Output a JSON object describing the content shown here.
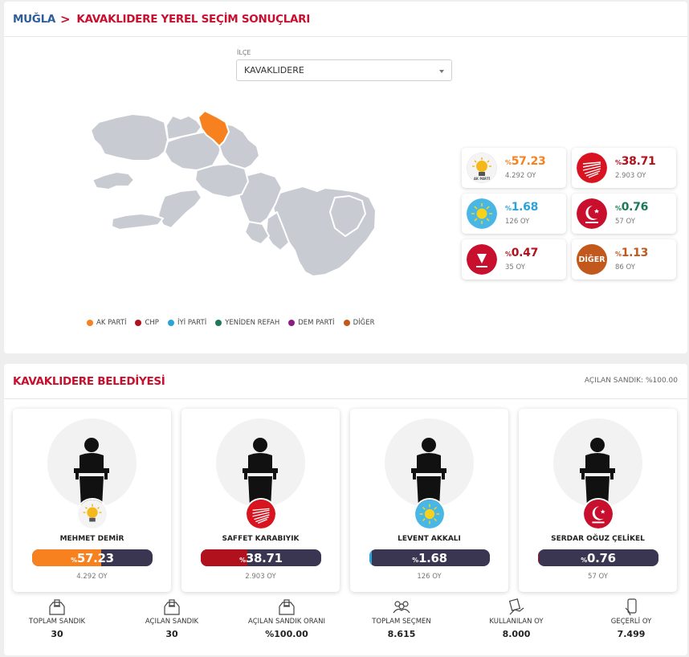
{
  "breadcrumb": {
    "city": "MUĞLA",
    "separator": ">",
    "title": "KAVAKLIDERE YEREL SEÇİM SONUÇLARI"
  },
  "district_select": {
    "label": "İLÇE",
    "value": "KAVAKLIDERE"
  },
  "colors": {
    "ak": "#f7811f",
    "chp": "#b1111c",
    "iyi": "#2ba3d8",
    "yeniden_refah": "#1b7a55",
    "dem": "#8e1b85",
    "diger": "#c2581c",
    "bar_bg": "#3a3550",
    "highlight_district": "#f7811f",
    "map_gray": "#c8ccd2"
  },
  "legend": [
    {
      "label": "AK PARTİ",
      "color": "#f7811f"
    },
    {
      "label": "CHP",
      "color": "#b1111c"
    },
    {
      "label": "İYİ PARTİ",
      "color": "#2ba3d8"
    },
    {
      "label": "YENİDEN REFAH",
      "color": "#1b7a55"
    },
    {
      "label": "DEM PARTİ",
      "color": "#8e1b85"
    },
    {
      "label": "DİĞER",
      "color": "#c2581c"
    }
  ],
  "results": [
    {
      "party": "AK PARTİ",
      "pct_prefix": "%",
      "pct": "57.23",
      "votes": "4.292 OY",
      "color": "#f7811f",
      "icon": "ak-parti-logo-icon"
    },
    {
      "party": "CHP",
      "pct_prefix": "%",
      "pct": "38.71",
      "votes": "2.903 OY",
      "color": "#b1111c",
      "icon": "chp-logo-icon"
    },
    {
      "party": "İYİ PARTİ",
      "pct_prefix": "%",
      "pct": "1.68",
      "votes": "126 OY",
      "color": "#2ba3d8",
      "icon": "iyi-parti-logo-icon"
    },
    {
      "party": "YENİDEN REFAH",
      "pct_prefix": "%",
      "pct": "0.76",
      "votes": "57 OY",
      "color": "#1b7a55",
      "icon": "yeniden-refah-logo-icon"
    },
    {
      "party": "ZAFER PARTİSİ",
      "pct_prefix": "%",
      "pct": "0.47",
      "votes": "35 OY",
      "color": "#b1111c",
      "icon": "zafer-partisi-logo-icon"
    },
    {
      "party": "DİĞER",
      "pct_prefix": "%",
      "pct": "1.13",
      "votes": "86 OY",
      "color": "#c2581c",
      "icon": "diger-logo-icon",
      "logo_text": "DİĞER"
    }
  ],
  "municipality": {
    "title": "KAVAKLIDERE BELEDİYESİ",
    "opened": "AÇILAN SANDIK: %100.00"
  },
  "candidates": [
    {
      "name": "MEHMET DEMİR",
      "pct_prefix": "%",
      "pct": "57.23",
      "share": 0.5723,
      "votes": "4.292 OY",
      "color": "#f7811f",
      "icon": "ak-parti-logo-icon"
    },
    {
      "name": "SAFFET KARABIYIK",
      "pct_prefix": "%",
      "pct": "38.71",
      "share": 0.3871,
      "votes": "2.903 OY",
      "color": "#b1111c",
      "icon": "chp-logo-icon"
    },
    {
      "name": "LEVENT AKKALI",
      "pct_prefix": "%",
      "pct": "1.68",
      "share": 0.0168,
      "votes": "126 OY",
      "color": "#2ba3d8",
      "icon": "iyi-parti-logo-icon"
    },
    {
      "name": "SERDAR OĞUZ ÇELİKEL",
      "pct_prefix": "%",
      "pct": "0.76",
      "share": 0.0076,
      "votes": "57 OY",
      "color": "#b1111c",
      "icon": "yeniden-refah-logo-icon"
    }
  ],
  "stats": [
    {
      "label": "TOPLAM SANDIK",
      "value": "30",
      "icon": "ballot-box-icon"
    },
    {
      "label": "AÇILAN SANDIK",
      "value": "30",
      "icon": "ballot-box-icon"
    },
    {
      "label": "AÇILAN SANDIK ORANI",
      "value": "%100.00",
      "icon": "ballot-box-icon"
    },
    {
      "label": "TOPLAM SEÇMEN",
      "value": "8.615",
      "icon": "voters-group-icon"
    },
    {
      "label": "KULLANILAN OY",
      "value": "8.000",
      "icon": "hand-vote-icon"
    },
    {
      "label": "GEÇERLİ OY",
      "value": "7.499",
      "icon": "valid-vote-phone-icon"
    }
  ]
}
